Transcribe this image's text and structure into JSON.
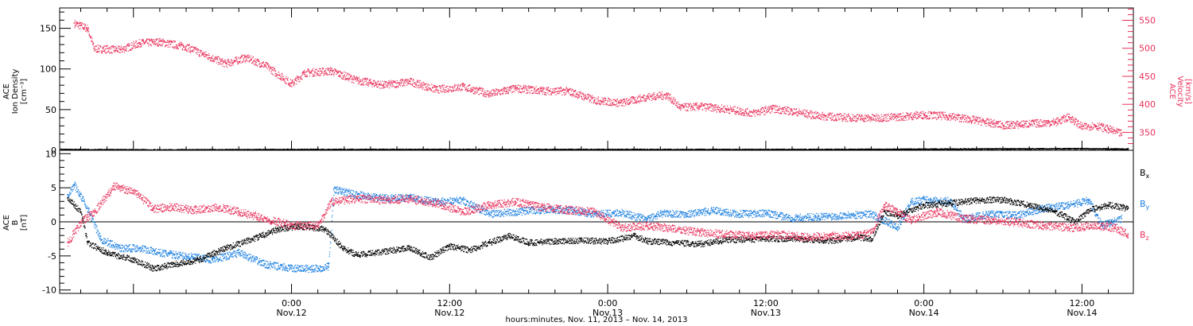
{
  "colors": {
    "axis": "#000000",
    "density": "#000000",
    "velocity": "#e8305a",
    "bx": "#000000",
    "by": "#1a7fe0",
    "bz": "#e8305a"
  },
  "x_caption": "hours:minutes, Nov. 11, 2013 – Nov. 14, 2013",
  "chart_data": [
    {
      "type": "scatter",
      "panel": "top",
      "ylabel": [
        "ACE",
        "Ion Density",
        "[cm⁻³]"
      ],
      "y_right_label": [
        "ACE",
        "Velocity",
        "[km/s]"
      ],
      "ylim": [
        0,
        175
      ],
      "yticks": [
        0,
        50,
        100,
        150
      ],
      "y_right_lim": [
        318,
        572
      ],
      "y_right_ticks": [
        350,
        400,
        450,
        500,
        550
      ],
      "x_range_hours": [
        -17.6,
        63.9
      ],
      "series": [
        {
          "name": "",
          "axis": "right",
          "color": "#e8305a",
          "points": [
            [
              -16.5,
              545
            ],
            [
              -15.5,
              536
            ],
            [
              -15,
              500
            ],
            [
              -13,
              498
            ],
            [
              -11.5,
              510
            ],
            [
              -10,
              512
            ],
            [
              -8,
              503
            ],
            [
              -6.5,
              488
            ],
            [
              -5,
              473
            ],
            [
              -3.5,
              484
            ],
            [
              -2,
              470
            ],
            [
              0,
              437
            ],
            [
              1,
              457
            ],
            [
              3,
              460
            ],
            [
              5,
              443
            ],
            [
              7,
              435
            ],
            [
              9,
              441
            ],
            [
              11,
              427
            ],
            [
              13,
              432
            ],
            [
              15,
              419
            ],
            [
              17,
              429
            ],
            [
              19,
              425
            ],
            [
              21,
              424
            ],
            [
              23,
              408
            ],
            [
              25,
              403
            ],
            [
              27,
              414
            ],
            [
              28.5,
              417
            ],
            [
              29.5,
              395
            ],
            [
              31,
              397
            ],
            [
              33,
              392
            ],
            [
              35,
              385
            ],
            [
              36.5,
              393
            ],
            [
              38,
              388
            ],
            [
              40,
              380
            ],
            [
              42,
              377
            ],
            [
              44,
              376
            ],
            [
              46,
              378
            ],
            [
              48,
              382
            ],
            [
              50,
              379
            ],
            [
              52,
              372
            ],
            [
              54,
              363
            ],
            [
              56,
              366
            ],
            [
              58,
              369
            ],
            [
              59,
              378
            ],
            [
              60,
              360
            ],
            [
              61,
              363
            ],
            [
              62,
              356
            ],
            [
              63,
              348
            ]
          ]
        },
        {
          "name": "",
          "axis": "left",
          "color": "#000000",
          "points": [
            [
              -17.5,
              1.5
            ],
            [
              -10,
              1
            ],
            [
              0,
              1.5
            ],
            [
              10,
              1.5
            ],
            [
              20,
              1.5
            ],
            [
              30,
              1.5
            ],
            [
              40,
              1.5
            ],
            [
              50,
              2
            ],
            [
              60,
              2.5
            ],
            [
              63.5,
              2
            ]
          ]
        }
      ]
    },
    {
      "type": "scatter",
      "panel": "bottom",
      "ylabel": [
        "ACE",
        "B",
        "[nT]"
      ],
      "ylim": [
        -10.5,
        10.5
      ],
      "yticks": [
        -10,
        -5,
        0,
        5,
        10
      ],
      "x_range_hours": [
        -17.6,
        63.9
      ],
      "x_ticks": [
        {
          "hour": 0,
          "time": "0:00",
          "date": "Nov.12"
        },
        {
          "hour": 12,
          "time": "12:00",
          "date": "Nov.12"
        },
        {
          "hour": 24,
          "time": "0:00",
          "date": "Nov.13"
        },
        {
          "hour": 36,
          "time": "12:00",
          "date": "Nov.13"
        },
        {
          "hour": 48,
          "time": "0:00",
          "date": "Nov.14"
        },
        {
          "hour": 60,
          "time": "12:00",
          "date": "Nov.14"
        }
      ],
      "legend": [
        {
          "base": "B",
          "sub": "x",
          "color": "#000000"
        },
        {
          "base": "B",
          "sub": "y",
          "color": "#1a7fe0"
        },
        {
          "base": "B",
          "sub": "z",
          "color": "#e8305a"
        }
      ],
      "series": [
        {
          "name": "Bx",
          "color": "#000000",
          "points": [
            [
              -17,
              3.5
            ],
            [
              -16,
              1.5
            ],
            [
              -15.5,
              -3
            ],
            [
              -14,
              -4.5
            ],
            [
              -12,
              -5.5
            ],
            [
              -10.5,
              -6.8
            ],
            [
              -9,
              -6.2
            ],
            [
              -7,
              -5.5
            ],
            [
              -5,
              -3.8
            ],
            [
              -3,
              -2.5
            ],
            [
              -1,
              -1
            ],
            [
              0.5,
              -0.6
            ],
            [
              2.5,
              -1
            ],
            [
              4,
              -4
            ],
            [
              5,
              -4.8
            ],
            [
              7,
              -4.3
            ],
            [
              9,
              -3.8
            ],
            [
              10.5,
              -5.2
            ],
            [
              12,
              -3.5
            ],
            [
              13.5,
              -4.1
            ],
            [
              15,
              -3
            ],
            [
              16.5,
              -2
            ],
            [
              18,
              -3
            ],
            [
              20,
              -2.8
            ],
            [
              22,
              -2.7
            ],
            [
              24,
              -2.8
            ],
            [
              26,
              -2
            ],
            [
              27,
              -2.8
            ],
            [
              29,
              -3
            ],
            [
              31,
              -3.2
            ],
            [
              33,
              -2.6
            ],
            [
              35,
              -2.5
            ],
            [
              37,
              -2.4
            ],
            [
              39,
              -2.5
            ],
            [
              41,
              -2.7
            ],
            [
              43,
              -2.2
            ],
            [
              44,
              -2.5
            ],
            [
              45,
              1.5
            ],
            [
              46,
              1
            ],
            [
              48,
              2.5
            ],
            [
              50,
              2.8
            ],
            [
              52,
              3.2
            ],
            [
              54,
              3.3
            ],
            [
              56,
              2.5
            ],
            [
              58,
              1.5
            ],
            [
              59.5,
              0
            ],
            [
              60.5,
              1.8
            ],
            [
              62,
              2.5
            ],
            [
              63.5,
              2
            ]
          ]
        },
        {
          "name": "By",
          "color": "#1a7fe0",
          "points": [
            [
              -17,
              4
            ],
            [
              -16.5,
              5.5
            ],
            [
              -15.5,
              2
            ],
            [
              -14.5,
              -2.5
            ],
            [
              -13,
              -3.8
            ],
            [
              -11.5,
              -3.8
            ],
            [
              -10,
              -4.5
            ],
            [
              -8,
              -5
            ],
            [
              -6,
              -5.5
            ],
            [
              -4,
              -4.5
            ],
            [
              -2,
              -6.2
            ],
            [
              0,
              -6.8
            ],
            [
              2,
              -6.8
            ],
            [
              2.8,
              -6.5
            ],
            [
              3.2,
              4.8
            ],
            [
              5,
              4
            ],
            [
              7,
              3.5
            ],
            [
              9,
              3.6
            ],
            [
              11,
              3
            ],
            [
              13,
              3.2
            ],
            [
              15,
              1.2
            ],
            [
              17,
              1.5
            ],
            [
              19,
              1.8
            ],
            [
              21,
              1.8
            ],
            [
              23,
              1.2
            ],
            [
              25,
              1.4
            ],
            [
              27,
              0.4
            ],
            [
              28,
              1.3
            ],
            [
              30,
              1.2
            ],
            [
              32,
              1.7
            ],
            [
              34,
              1.2
            ],
            [
              36,
              1.3
            ],
            [
              38,
              0.6
            ],
            [
              40,
              0.8
            ],
            [
              42,
              1
            ],
            [
              44,
              1.2
            ],
            [
              46,
              -0.8
            ],
            [
              47,
              3
            ],
            [
              48,
              3.3
            ],
            [
              50,
              3.1
            ],
            [
              51,
              0.5
            ],
            [
              53,
              1.2
            ],
            [
              55,
              1
            ],
            [
              57,
              2
            ],
            [
              59,
              2.5
            ],
            [
              60.5,
              3.2
            ],
            [
              61.5,
              -0.5
            ],
            [
              63,
              0.5
            ]
          ]
        },
        {
          "name": "Bz",
          "color": "#e8305a",
          "points": [
            [
              -17,
              -3
            ],
            [
              -16,
              0
            ],
            [
              -15,
              1.5
            ],
            [
              -14,
              4
            ],
            [
              -13.5,
              5.3
            ],
            [
              -12,
              4.5
            ],
            [
              -10.5,
              2
            ],
            [
              -9,
              2.2
            ],
            [
              -7.5,
              1.8
            ],
            [
              -5.5,
              2.2
            ],
            [
              -4,
              1.5
            ],
            [
              -2,
              0.5
            ],
            [
              0,
              -0.5
            ],
            [
              2,
              -0.5
            ],
            [
              3,
              3
            ],
            [
              5,
              3.5
            ],
            [
              7,
              3.2
            ],
            [
              9,
              3.4
            ],
            [
              11,
              2.8
            ],
            [
              13,
              1.5
            ],
            [
              15,
              2.5
            ],
            [
              17,
              3
            ],
            [
              19,
              2.2
            ],
            [
              21,
              1.8
            ],
            [
              23,
              1.5
            ],
            [
              25,
              -0.8
            ],
            [
              27,
              -0.5
            ],
            [
              29,
              -1
            ],
            [
              31,
              -1.5
            ],
            [
              33,
              -1.8
            ],
            [
              35,
              -2
            ],
            [
              37,
              -1.8
            ],
            [
              39,
              -2.2
            ],
            [
              41,
              -2
            ],
            [
              43,
              -2
            ],
            [
              44,
              -1.5
            ],
            [
              45,
              2.5
            ],
            [
              46,
              1.5
            ],
            [
              47,
              0.3
            ],
            [
              49,
              1.5
            ],
            [
              51,
              0.5
            ],
            [
              53,
              0.3
            ],
            [
              55,
              0
            ],
            [
              57,
              -0.5
            ],
            [
              59,
              -0.8
            ],
            [
              61,
              -0.5
            ],
            [
              62.5,
              -0.8
            ],
            [
              63.5,
              -1.8
            ]
          ]
        }
      ]
    }
  ]
}
